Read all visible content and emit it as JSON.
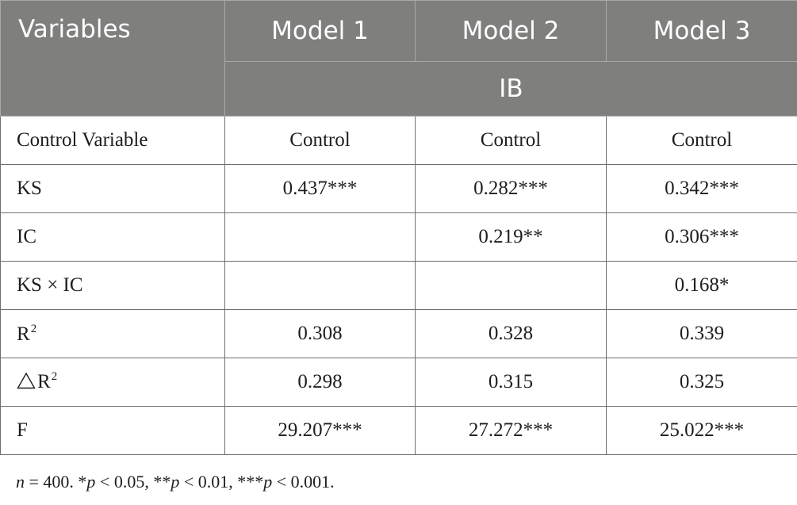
{
  "table": {
    "header": {
      "variables": "Variables",
      "models": [
        "Model 1",
        "Model 2",
        "Model 3"
      ],
      "dependent": "IB"
    },
    "rows": [
      {
        "label": "Control Variable",
        "values": [
          "Control",
          "Control",
          "Control"
        ]
      },
      {
        "label": "KS",
        "values": [
          "0.437***",
          "0.282***",
          "0.342***"
        ]
      },
      {
        "label": "IC",
        "values": [
          "",
          "0.219**",
          "0.306***"
        ]
      },
      {
        "label": "KS × IC",
        "values": [
          "",
          "",
          "0.168*"
        ]
      },
      {
        "label": "R",
        "superscript": "2",
        "values": [
          "0.308",
          "0.328",
          "0.339"
        ]
      },
      {
        "label": "R",
        "prefix_symbol": "triangle-icon",
        "superscript": "2",
        "values": [
          "0.298",
          "0.315",
          "0.325"
        ]
      },
      {
        "label": "F",
        "values": [
          "29.207***",
          "27.272***",
          "25.022***"
        ]
      }
    ]
  },
  "note": {
    "n": "n",
    "rest": " = 400. *",
    "p1": "p",
    "t1": " < 0.05, **",
    "p2": "p",
    "t2": " < 0.01, ***",
    "p3": "p",
    "t3": " < 0.001."
  }
}
